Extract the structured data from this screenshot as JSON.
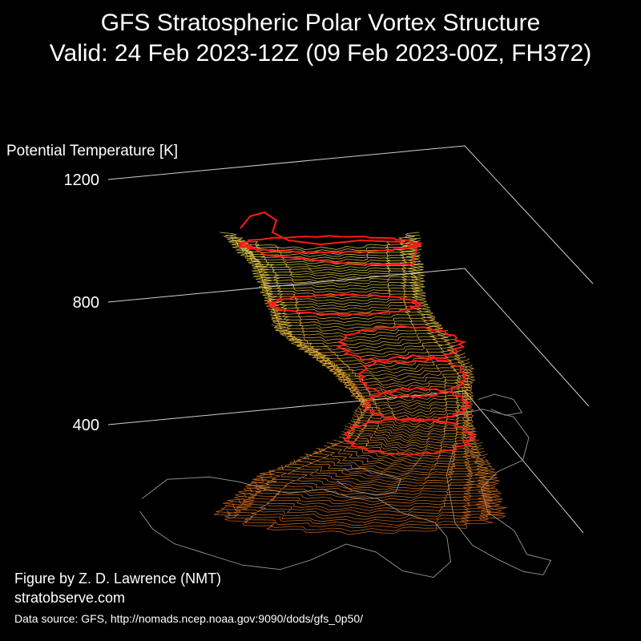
{
  "chart_data": {
    "type": "3d-isosurface",
    "title": "GFS Stratospheric Polar Vortex Structure",
    "subtitle": "Valid: 24 Feb 2023-12Z  (09 Feb 2023-00Z, FH372)",
    "zlabel": "Potential Temperature [K]",
    "zticks": [
      400,
      800,
      1200
    ],
    "zlim": [
      400,
      1200
    ],
    "grid": true,
    "colors": {
      "background": "#000000",
      "axis": "#cfcfcf",
      "coastline": "#8a8a8a",
      "contour_outline": "#ff1a1a",
      "surface_low": "#d2691e",
      "surface_mid": "#e8a838",
      "surface_high": "#f0e050"
    }
  },
  "credits": {
    "author": "Figure by Z. D. Lawrence (NMT)",
    "site": "stratobserve.com",
    "source": "Data source: GFS, http://nomads.ncep.noaa.gov:9090/dods/gfs_0p50/"
  }
}
